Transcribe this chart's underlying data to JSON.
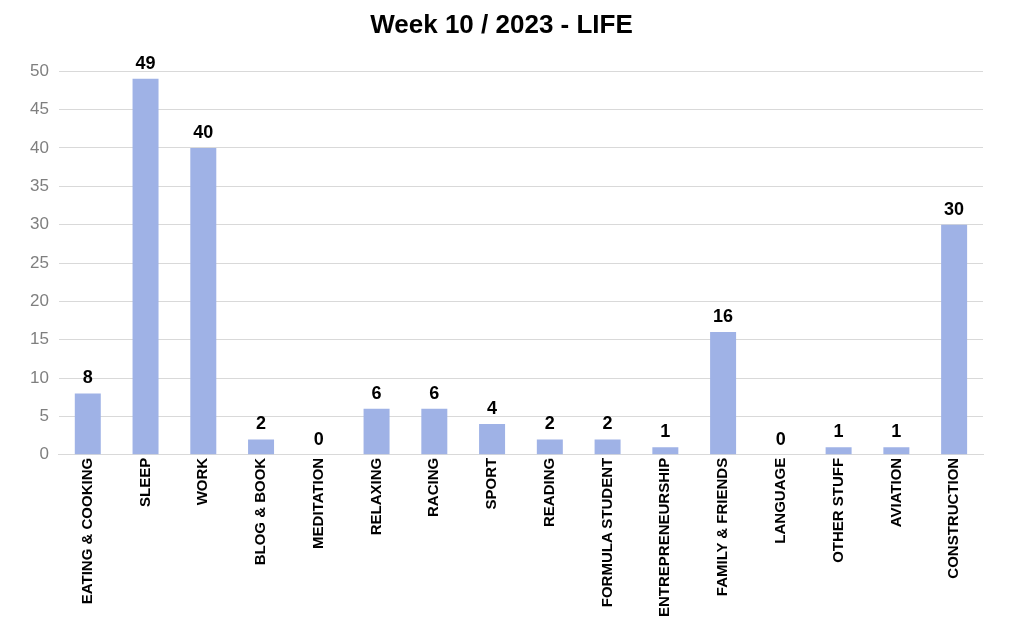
{
  "chart_data": {
    "type": "bar",
    "title": "Week 10 / 2023 - LIFE",
    "categories": [
      "EATING & COOKING",
      "SLEEP",
      "WORK",
      "BLOG & BOOK",
      "MEDITATION",
      "RELAXING",
      "RACING",
      "SPORT",
      "READING",
      "FORMULA STUDENT",
      "ENTREPRENEURSHIP",
      "FAMILY & FRIENDS",
      "LANGUAGE",
      "OTHER STUFF",
      "AVIATION",
      "CONSTRUCTION"
    ],
    "values": [
      8,
      49,
      40,
      2,
      0,
      6,
      6,
      4,
      2,
      2,
      1,
      16,
      0,
      1,
      1,
      30
    ],
    "color": "#9fb2e6",
    "ylim": [
      0,
      50
    ],
    "yticks": [
      0,
      5,
      10,
      15,
      20,
      25,
      30,
      35,
      40,
      45,
      50
    ],
    "grid": "y",
    "data_labels": true,
    "legend": false
  }
}
